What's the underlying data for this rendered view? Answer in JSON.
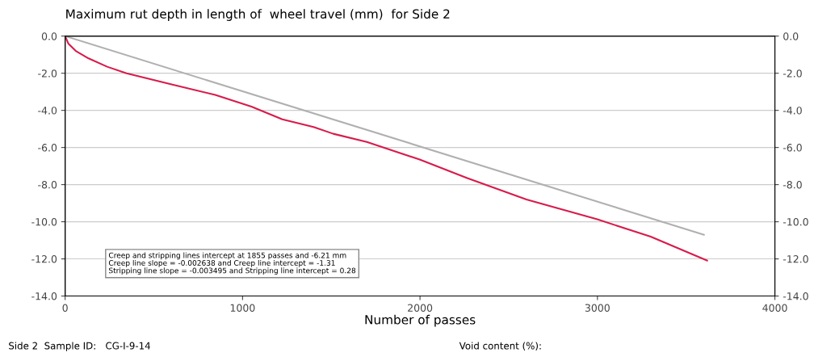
{
  "chart_data": {
    "type": "line",
    "title": "Maximum rut depth in length of  wheel travel (mm)  for Side 2",
    "xlabel": "Number of passes",
    "series": [
      {
        "color": "#d81b4a",
        "x": [
          0,
          18,
          60,
          132,
          237,
          346,
          600,
          846,
          1050,
          1224,
          1400,
          1511,
          1700,
          1998,
          2266,
          2600,
          2999,
          3300,
          3618
        ],
        "values": [
          0,
          -0.4,
          -0.8,
          -1.2,
          -1.65,
          -2.0,
          -2.6,
          -3.17,
          -3.8,
          -4.48,
          -4.9,
          -5.26,
          -5.7,
          -6.65,
          -7.65,
          -8.8,
          -9.87,
          -10.8,
          -12.09
        ]
      },
      {
        "color": "#b0b0b0",
        "x": [
          0,
          3600
        ],
        "values": [
          0,
          -10.7
        ]
      }
    ],
    "xlim": [
      0,
      4000
    ],
    "xticks": [
      0,
      1000,
      2000,
      3000,
      4000
    ],
    "ylim": [
      -14,
      0
    ],
    "yticks": [
      {
        "value": -14,
        "label": "-14.0"
      },
      {
        "value": -12,
        "label": "-12.0"
      },
      {
        "value": -10,
        "label": "-10.0"
      },
      {
        "value": -8,
        "label": "-8.0"
      },
      {
        "value": -6,
        "label": "-6.0"
      },
      {
        "value": -4,
        "label": "-4.0"
      },
      {
        "value": -2,
        "label": "-2.0"
      },
      {
        "value": 0,
        "label": "0.0"
      }
    ],
    "y2lim": [
      -14,
      0
    ],
    "y2ticks": [
      {
        "value": -14,
        "label": "-14.0"
      },
      {
        "value": -12,
        "label": "-12.0"
      },
      {
        "value": -10,
        "label": "-10.0"
      },
      {
        "value": -8,
        "label": "-8.0"
      },
      {
        "value": -6,
        "label": "-6.0"
      },
      {
        "value": -4,
        "label": "-4.0"
      },
      {
        "value": -2,
        "label": "-2.0"
      },
      {
        "value": 0,
        "label": "0.0"
      }
    ],
    "grid": "y",
    "legend": false,
    "annotations": [
      "Creep and stripping lines intercept at 1855 passes and -6.21 mm\nCreep line slope = -0.002638 and Creep line intercept = -1.31\nStripping line slope = -0.003495 and Stripping line intercept = 0.28",
      "Side 2  Sample ID:   CG-I-9-14",
      "Void content (%):"
    ]
  }
}
